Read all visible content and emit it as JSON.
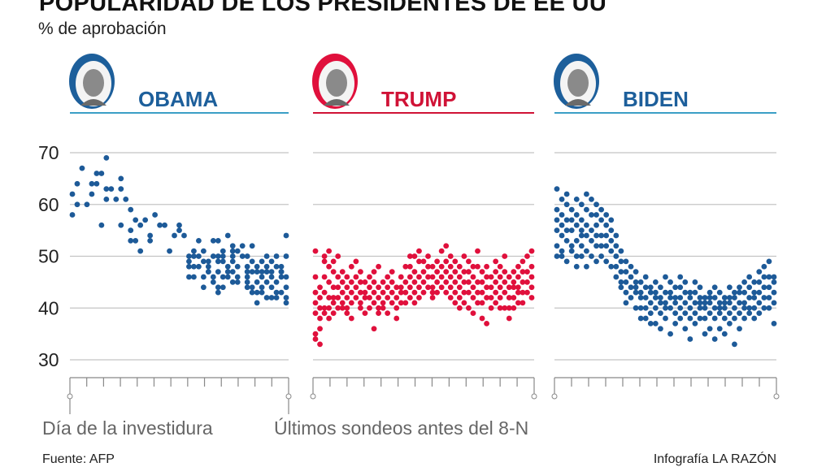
{
  "title": "POPULARIDAD DE LOS PRESIDENTES DE EE UU",
  "subtitle": "% de aprobación",
  "x_start_label": "Día de la investidura",
  "x_end_label": "Últimos sondeos antes del 8-N",
  "source": "Fuente: AFP",
  "credit": "Infografía LA RAZÓN",
  "chart_data": {
    "type": "scatter",
    "ylim": [
      30,
      70
    ],
    "yticks": [
      "70",
      "60",
      "50",
      "40",
      "30"
    ],
    "grid": true,
    "panels": [
      {
        "name": "OBAMA",
        "color": "#1d5a98",
        "title_color": "#1d5f9b",
        "rule_color": "#3b9fc6",
        "columns": [
          [
            62,
            58
          ],
          [
            64,
            60
          ],
          [
            67
          ],
          [
            60
          ],
          [
            64,
            62
          ],
          [
            64,
            66
          ],
          [
            66,
            56
          ],
          [
            69,
            63,
            61
          ],
          [
            63
          ],
          [
            61
          ],
          [
            63,
            65,
            56
          ],
          [
            61
          ],
          [
            59,
            55,
            53
          ],
          [
            53,
            57
          ],
          [
            56,
            51
          ],
          [
            57
          ],
          [
            53,
            54
          ],
          [
            58
          ],
          [
            56
          ],
          [
            56
          ],
          [
            51
          ],
          [
            54
          ],
          [
            56,
            55
          ],
          [
            54
          ],
          [
            48,
            46,
            50,
            49
          ],
          [
            50,
            51,
            46,
            48
          ],
          [
            53,
            50,
            48
          ],
          [
            44,
            46,
            51,
            49
          ],
          [
            49,
            48,
            47
          ],
          [
            53,
            50,
            46,
            45
          ],
          [
            53,
            50,
            49,
            47,
            44,
            43
          ],
          [
            51,
            50,
            49,
            44,
            46
          ],
          [
            54,
            48,
            47,
            46
          ],
          [
            52,
            51,
            50,
            47,
            45,
            49
          ],
          [
            51,
            48,
            46,
            45
          ],
          [
            52,
            50
          ],
          [
            48,
            47,
            46,
            44,
            45,
            50
          ],
          [
            49,
            47,
            44,
            52,
            43
          ],
          [
            48,
            47,
            45,
            41,
            43
          ],
          [
            47,
            46,
            44,
            43,
            49
          ],
          [
            50,
            47,
            45,
            42,
            48
          ],
          [
            47,
            46,
            44,
            42,
            49
          ],
          [
            50,
            48,
            45,
            42,
            43
          ],
          [
            48,
            47,
            46,
            43,
            47
          ],
          [
            54,
            50,
            46,
            44,
            42,
            41
          ]
        ]
      },
      {
        "name": "TRUMP",
        "color": "#e0103c",
        "title_color": "#d01236",
        "rule_color": "#d01236",
        "columns": [
          [
            51,
            46,
            43,
            41,
            39,
            35,
            34
          ],
          [
            44,
            42,
            40,
            38,
            36,
            33
          ],
          [
            50,
            49,
            46,
            43,
            40,
            39
          ],
          [
            51,
            48,
            45,
            42,
            40,
            38
          ],
          [
            49,
            47,
            44,
            42,
            41,
            39
          ],
          [
            50,
            46,
            44,
            42,
            40
          ],
          [
            47,
            45,
            43,
            41,
            40
          ],
          [
            46,
            44,
            42,
            40,
            39
          ],
          [
            48,
            45,
            43,
            41,
            38
          ],
          [
            49,
            46,
            44,
            42
          ],
          [
            47,
            45,
            43,
            41,
            40
          ],
          [
            45,
            43,
            42,
            39
          ],
          [
            46,
            44,
            42,
            40
          ],
          [
            47,
            45,
            43,
            41,
            36
          ],
          [
            48,
            44,
            42,
            40,
            39
          ],
          [
            45,
            43,
            41,
            40
          ],
          [
            46,
            44,
            42,
            39
          ],
          [
            47,
            45,
            43,
            41
          ],
          [
            44,
            42,
            40,
            38
          ],
          [
            46,
            44,
            43,
            41
          ],
          [
            48,
            45,
            43,
            41
          ],
          [
            50,
            48,
            46,
            44,
            42
          ],
          [
            50,
            47,
            45,
            43,
            41
          ],
          [
            51,
            49,
            46,
            44,
            42
          ],
          [
            49,
            47,
            45,
            43
          ],
          [
            50,
            48,
            46,
            44
          ],
          [
            48,
            46,
            44,
            43,
            42
          ],
          [
            49,
            47,
            45,
            43
          ],
          [
            51,
            48,
            46,
            44
          ],
          [
            52,
            49,
            47,
            45,
            43
          ],
          [
            50,
            48,
            46,
            44,
            42
          ],
          [
            49,
            47,
            45,
            43,
            41
          ],
          [
            48,
            46,
            44,
            42,
            40
          ],
          [
            50,
            47,
            45,
            43,
            41
          ],
          [
            49,
            47,
            45,
            43,
            40
          ],
          [
            48,
            46,
            44,
            42,
            39
          ],
          [
            51,
            48,
            45,
            43,
            41
          ],
          [
            47,
            45,
            43,
            41,
            38
          ],
          [
            48,
            46,
            44,
            42,
            37
          ],
          [
            46,
            44,
            42,
            40
          ],
          [
            49,
            47,
            45,
            43,
            41
          ],
          [
            48,
            46,
            44,
            42,
            40
          ],
          [
            50,
            47,
            45,
            43,
            40
          ],
          [
            46,
            44,
            42,
            40,
            38
          ],
          [
            47,
            45,
            44,
            42,
            40
          ],
          [
            48,
            46,
            44,
            43,
            41
          ],
          [
            49,
            47,
            45,
            43,
            41
          ],
          [
            50,
            47,
            45,
            43
          ],
          [
            51,
            48,
            46,
            44,
            42
          ]
        ]
      },
      {
        "name": "BIDEN",
        "color": "#1d5a98",
        "title_color": "#1d5f9b",
        "rule_color": "#3b9fc6",
        "columns": [
          [
            63,
            59,
            57,
            55,
            52,
            50
          ],
          [
            61,
            58,
            56,
            54,
            51,
            50
          ],
          [
            62,
            60,
            57,
            55,
            53,
            49
          ],
          [
            59,
            57,
            55,
            52,
            51
          ],
          [
            61,
            58,
            56,
            53,
            50,
            48
          ],
          [
            60,
            57,
            55,
            54,
            52,
            50
          ],
          [
            62,
            59,
            56,
            54,
            51,
            48
          ],
          [
            61,
            58,
            55,
            53,
            50
          ],
          [
            60,
            58,
            56,
            54,
            52,
            49
          ],
          [
            59,
            57,
            54,
            52,
            50
          ],
          [
            58,
            56,
            54,
            52,
            49
          ],
          [
            57,
            55,
            53,
            51,
            48
          ],
          [
            54,
            52,
            50,
            48,
            46
          ],
          [
            51,
            49,
            47,
            45,
            44
          ],
          [
            49,
            47,
            45,
            43,
            41
          ],
          [
            48,
            46,
            44,
            42
          ],
          [
            47,
            45,
            44,
            43,
            40
          ],
          [
            45,
            43,
            42,
            40,
            38
          ],
          [
            46,
            44,
            42,
            40,
            38
          ],
          [
            44,
            43,
            41,
            39,
            37
          ],
          [
            45,
            43,
            42,
            40,
            37
          ],
          [
            44,
            42,
            41,
            39,
            36
          ],
          [
            46,
            43,
            41,
            40,
            38
          ],
          [
            45,
            43,
            42,
            40,
            35
          ],
          [
            44,
            42,
            41,
            39,
            37
          ],
          [
            46,
            44,
            42,
            40,
            38
          ],
          [
            45,
            43,
            41,
            39,
            36
          ],
          [
            43,
            42,
            40,
            38,
            34
          ],
          [
            45,
            43,
            41,
            39,
            37
          ],
          [
            44,
            42,
            41,
            40,
            38
          ],
          [
            42,
            41,
            40,
            38,
            35
          ],
          [
            43,
            42,
            41,
            39,
            36
          ],
          [
            44,
            42,
            40,
            38,
            34
          ],
          [
            43,
            41,
            40,
            39,
            36
          ],
          [
            42,
            41,
            40,
            38,
            35
          ],
          [
            44,
            42,
            41,
            39,
            37
          ],
          [
            43,
            42,
            40,
            38,
            33
          ],
          [
            44,
            43,
            41,
            39,
            36
          ],
          [
            45,
            43,
            41,
            40,
            38
          ],
          [
            46,
            44,
            42,
            40,
            39
          ],
          [
            45,
            43,
            42,
            40,
            38
          ],
          [
            47,
            45,
            43,
            41,
            39
          ],
          [
            48,
            46,
            44,
            42,
            40
          ],
          [
            49,
            46,
            44,
            42,
            40
          ],
          [
            46,
            45,
            43,
            41,
            37
          ]
        ]
      }
    ]
  }
}
